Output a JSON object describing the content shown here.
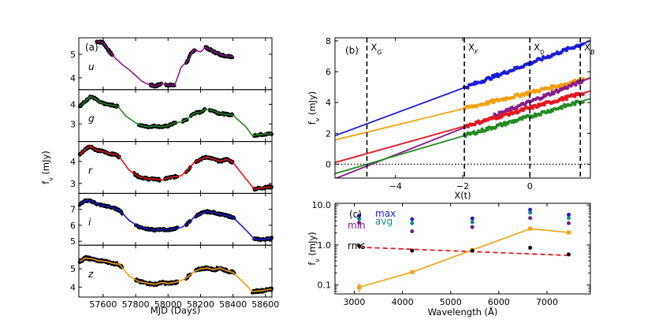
{
  "colors": {
    "u": "#8b1c8b",
    "g": "#228b22",
    "r": "#e8141e",
    "i": "#1a1adc",
    "z": "#f5a00f",
    "points": "#000000",
    "rms_line": "#e8141e",
    "max_text": "#1a1adc",
    "avg_text": "#138a8a",
    "min_text": "#7b1c8b"
  },
  "chart_data": [
    {
      "id": "a",
      "type": "line",
      "panel_label": "(a)",
      "xlabel": "MJD (Days)",
      "ylabel": "f_ν (mJy)",
      "xlim": [
        57450,
        58640
      ],
      "xticks": [
        57600,
        57800,
        58000,
        58200,
        58400,
        58600
      ],
      "subpanels": [
        {
          "band": "u",
          "ylim": [
            3.5,
            5.7
          ],
          "yticks": [
            4,
            5
          ],
          "start": 57555,
          "line": [
            [
              57555,
              5.55
            ],
            [
              57600,
              5.5
            ],
            [
              57640,
              5.1
            ],
            [
              57680,
              4.8
            ],
            [
              57720,
              4.55
            ],
            [
              57760,
              4.35
            ],
            [
              57800,
              4.1
            ],
            [
              57840,
              3.85
            ],
            [
              57880,
              3.72
            ],
            [
              57920,
              3.65
            ],
            [
              57960,
              3.75
            ],
            [
              58000,
              3.7
            ],
            [
              58040,
              3.68
            ],
            [
              58060,
              4.05
            ],
            [
              58080,
              4.45
            ],
            [
              58120,
              4.72
            ],
            [
              58140,
              5.0
            ],
            [
              58160,
              5.2
            ],
            [
              58200,
              5.1
            ],
            [
              58230,
              5.3
            ],
            [
              58270,
              5.15
            ],
            [
              58300,
              5.05
            ],
            [
              58340,
              4.95
            ],
            [
              58400,
              4.9
            ]
          ],
          "gaps": [
            [
              57560,
              57660
            ],
            [
              57890,
              57960
            ],
            [
              57985,
              58040
            ],
            [
              58110,
              58170
            ],
            [
              58230,
              58400
            ]
          ],
          "noise": 0.05
        },
        {
          "band": "g",
          "ylim": [
            2.1,
            4.75
          ],
          "yticks": [
            3,
            4
          ],
          "start": 57455,
          "line": [
            [
              57455,
              3.9
            ],
            [
              57490,
              4.15
            ],
            [
              57520,
              4.4
            ],
            [
              57550,
              4.3
            ],
            [
              57580,
              4.1
            ],
            [
              57620,
              4.0
            ],
            [
              57660,
              3.95
            ],
            [
              57690,
              3.9
            ],
            [
              57740,
              3.4
            ],
            [
              57800,
              3.05
            ],
            [
              57840,
              2.9
            ],
            [
              57880,
              2.85
            ],
            [
              57920,
              2.9
            ],
            [
              57960,
              2.85
            ],
            [
              58000,
              2.9
            ],
            [
              58040,
              3.05
            ],
            [
              58080,
              3.1
            ],
            [
              58120,
              3.25
            ],
            [
              58160,
              3.55
            ],
            [
              58200,
              3.6
            ],
            [
              58230,
              3.75
            ],
            [
              58270,
              3.7
            ],
            [
              58310,
              3.55
            ],
            [
              58350,
              3.5
            ],
            [
              58400,
              3.45
            ],
            [
              58480,
              2.85
            ],
            [
              58520,
              2.4
            ],
            [
              58560,
              2.45
            ],
            [
              58640,
              2.5
            ]
          ],
          "gaps": [
            [
              57455,
              57690
            ],
            [
              57820,
              58050
            ],
            [
              58090,
              58120
            ],
            [
              58140,
              58230
            ],
            [
              58255,
              58400
            ],
            [
              58530,
              58640
            ]
          ],
          "noise": 0.05
        },
        {
          "band": "r",
          "ylim": [
            2.55,
            4.9
          ],
          "yticks": [
            3,
            4
          ],
          "start": 57455,
          "line": [
            [
              57455,
              4.3
            ],
            [
              57490,
              4.55
            ],
            [
              57520,
              4.7
            ],
            [
              57560,
              4.5
            ],
            [
              57600,
              4.45
            ],
            [
              57640,
              4.35
            ],
            [
              57680,
              4.3
            ],
            [
              57700,
              4.2
            ],
            [
              57760,
              3.6
            ],
            [
              57820,
              3.3
            ],
            [
              57880,
              3.2
            ],
            [
              57920,
              3.2
            ],
            [
              57960,
              3.15
            ],
            [
              58000,
              3.25
            ],
            [
              58040,
              3.3
            ],
            [
              58080,
              3.35
            ],
            [
              58120,
              3.6
            ],
            [
              58160,
              3.95
            ],
            [
              58200,
              4.1
            ],
            [
              58240,
              4.2
            ],
            [
              58280,
              4.1
            ],
            [
              58320,
              4.0
            ],
            [
              58360,
              4.1
            ],
            [
              58400,
              3.95
            ],
            [
              58480,
              3.2
            ],
            [
              58530,
              2.75
            ],
            [
              58580,
              2.8
            ],
            [
              58640,
              2.85
            ]
          ],
          "gaps": [
            [
              57455,
              57700
            ],
            [
              57790,
              57950
            ],
            [
              57980,
              58060
            ],
            [
              58110,
              58140
            ],
            [
              58170,
              58400
            ],
            [
              58530,
              58640
            ]
          ],
          "noise": 0.05
        },
        {
          "band": "i",
          "ylim": [
            4.75,
            8.0
          ],
          "yticks": [
            5,
            6,
            7
          ],
          "start": 57455,
          "line": [
            [
              57455,
              7.3
            ],
            [
              57490,
              7.55
            ],
            [
              57530,
              7.5
            ],
            [
              57570,
              7.3
            ],
            [
              57620,
              7.2
            ],
            [
              57660,
              7.1
            ],
            [
              57700,
              6.95
            ],
            [
              57760,
              6.3
            ],
            [
              57820,
              5.9
            ],
            [
              57880,
              5.75
            ],
            [
              57920,
              5.7
            ],
            [
              57960,
              5.75
            ],
            [
              58000,
              5.7
            ],
            [
              58040,
              5.8
            ],
            [
              58080,
              5.85
            ],
            [
              58120,
              6.1
            ],
            [
              58160,
              6.5
            ],
            [
              58200,
              6.75
            ],
            [
              58240,
              6.85
            ],
            [
              58280,
              6.8
            ],
            [
              58320,
              6.7
            ],
            [
              58360,
              6.6
            ],
            [
              58400,
              6.5
            ],
            [
              58480,
              5.7
            ],
            [
              58530,
              5.15
            ],
            [
              58580,
              5.1
            ],
            [
              58640,
              5.2
            ]
          ],
          "gaps": [
            [
              57455,
              57720
            ],
            [
              57800,
              58060
            ],
            [
              58110,
              58140
            ],
            [
              58170,
              58410
            ],
            [
              58530,
              58640
            ]
          ],
          "noise": 0.06
        },
        {
          "band": "z",
          "ylim": [
            3.45,
            6.3
          ],
          "yticks": [
            4,
            5
          ],
          "start": 57455,
          "line": [
            [
              57455,
              5.4
            ],
            [
              57490,
              5.6
            ],
            [
              57530,
              5.55
            ],
            [
              57570,
              5.45
            ],
            [
              57620,
              5.4
            ],
            [
              57660,
              5.3
            ],
            [
              57700,
              5.25
            ],
            [
              57760,
              4.6
            ],
            [
              57820,
              4.3
            ],
            [
              57880,
              4.2
            ],
            [
              57920,
              4.15
            ],
            [
              57960,
              4.25
            ],
            [
              58000,
              4.2
            ],
            [
              58040,
              4.25
            ],
            [
              58080,
              4.35
            ],
            [
              58120,
              4.55
            ],
            [
              58160,
              4.85
            ],
            [
              58200,
              5.0
            ],
            [
              58240,
              5.05
            ],
            [
              58280,
              4.95
            ],
            [
              58320,
              5.05
            ],
            [
              58360,
              4.9
            ],
            [
              58400,
              4.8
            ],
            [
              58480,
              4.1
            ],
            [
              58520,
              3.75
            ],
            [
              58580,
              3.8
            ],
            [
              58640,
              3.9
            ]
          ],
          "gaps": [
            [
              57455,
              57720
            ],
            [
              57800,
              58060
            ],
            [
              58110,
              58140
            ],
            [
              58170,
              58410
            ],
            [
              58520,
              58640
            ]
          ],
          "noise": 0.07
        }
      ]
    },
    {
      "id": "b",
      "type": "line",
      "panel_label": "(b)",
      "xlabel": "X(t)",
      "ylabel": "f_ν (mJy)",
      "xlim": [
        -5.8,
        1.8
      ],
      "ylim": [
        -0.9,
        8.2
      ],
      "xticks": [
        -4,
        -2,
        0
      ],
      "yticks": [
        0,
        2,
        4,
        6,
        8
      ],
      "vlines": [
        {
          "label": "X",
          "sub": "G",
          "x": -4.85
        },
        {
          "label": "X",
          "sub": "F",
          "x": -1.95
        },
        {
          "label": "X",
          "sub": "0",
          "x": 0.0
        },
        {
          "label": "X",
          "sub": "B",
          "x": 1.5
        }
      ],
      "hline_y": 0,
      "series": [
        {
          "band": "i",
          "intercept": 6.55,
          "slope": 0.81,
          "data_x": [
            -1.95,
            1.6
          ]
        },
        {
          "band": "z",
          "intercept": 4.65,
          "slope": 0.53,
          "data_x": [
            -1.95,
            1.6
          ]
        },
        {
          "band": "u",
          "intercept": 4.05,
          "slope": 0.86,
          "data_x": [
            -1.05,
            1.6
          ]
        },
        {
          "band": "r",
          "intercept": 3.65,
          "slope": 0.61,
          "data_x": [
            -1.95,
            1.6
          ]
        },
        {
          "band": "g",
          "intercept": 3.1,
          "slope": 0.64,
          "data_x": [
            -1.95,
            1.6
          ]
        }
      ]
    },
    {
      "id": "c",
      "type": "scatter",
      "panel_label": "(c)",
      "xlabel": "Wavelength (Å)",
      "ylabel": "f_ν (mJy)",
      "xlim": [
        2600,
        7900
      ],
      "ylim": [
        0.06,
        11
      ],
      "yscale": "log",
      "xticks": [
        3000,
        4000,
        5000,
        6000,
        7000
      ],
      "yticks": [
        0.1,
        1.0,
        10.0
      ],
      "ytick_labels": [
        "0.1",
        "1.0",
        "10.0"
      ],
      "wavelengths": [
        3100,
        4200,
        5450,
        6650,
        7450
      ],
      "max": [
        5.4,
        4.4,
        4.6,
        7.6,
        5.7
      ],
      "avg": [
        4.5,
        3.5,
        3.7,
        6.4,
        4.7
      ],
      "min": [
        3.6,
        2.2,
        2.8,
        4.7,
        3.5
      ],
      "rms": [
        0.95,
        0.72,
        0.72,
        0.85,
        0.58
      ],
      "orange": [
        0.088,
        0.21,
        0.75,
        2.55,
        2.05
      ],
      "orange_err": [
        0.022,
        0.012,
        0.04,
        0.15,
        0.18
      ],
      "rms_fit": [
        [
          3100,
          0.88
        ],
        [
          7450,
          0.55
        ]
      ],
      "labels": {
        "max": "max",
        "avg": "avg",
        "min": "min",
        "rms": "rms"
      }
    }
  ]
}
